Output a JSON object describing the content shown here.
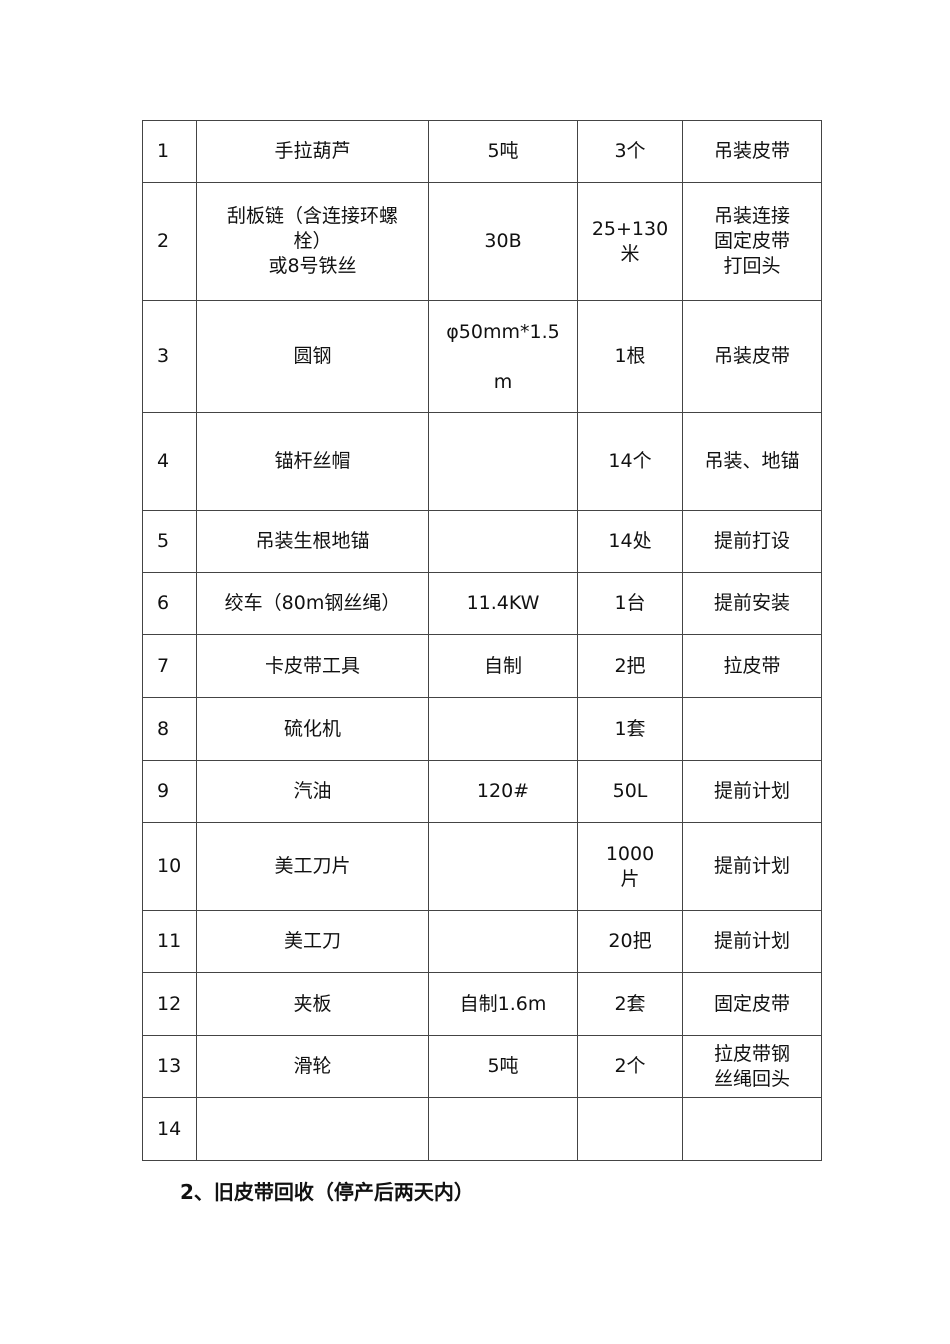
{
  "table": {
    "rows": [
      {
        "no": "1",
        "name": "手拉葫芦",
        "spec": "5吨",
        "qty": "3个",
        "use": "吊装皮带"
      },
      {
        "no": "2",
        "name": "刮板链（含连接环螺\n栓）\n或8号铁丝",
        "spec": "30B",
        "qty": "25+130\n米",
        "use": "吊装连接\n固定皮带\n打回头"
      },
      {
        "no": "3",
        "name": "圆钢",
        "spec": "φ50mm*1.5\nm",
        "qty": "1根",
        "use": "吊装皮带"
      },
      {
        "no": "4",
        "name": "锚杆丝帽",
        "spec": "",
        "qty": "14个",
        "use": "吊装、地锚"
      },
      {
        "no": "5",
        "name": "吊装生根地锚",
        "spec": "",
        "qty": "14处",
        "use": "提前打设"
      },
      {
        "no": "6",
        "name": "绞车（80m钢丝绳）",
        "spec": "11.4KW",
        "qty": "1台",
        "use": "提前安装"
      },
      {
        "no": "7",
        "name": "卡皮带工具",
        "spec": "自制",
        "qty": "2把",
        "use": "拉皮带"
      },
      {
        "no": "8",
        "name": "硫化机",
        "spec": "",
        "qty": "1套",
        "use": ""
      },
      {
        "no": "9",
        "name": "汽油",
        "spec": "120#",
        "qty": "50L",
        "use": "提前计划"
      },
      {
        "no": "10",
        "name": "美工刀片",
        "spec": "",
        "qty": "1000\n片",
        "use": "提前计划"
      },
      {
        "no": "11",
        "name": "美工刀",
        "spec": "",
        "qty": "20把",
        "use": "提前计划"
      },
      {
        "no": "12",
        "name": "夹板",
        "spec": "自制1.6m",
        "qty": "2套",
        "use": "固定皮带"
      },
      {
        "no": "13",
        "name": "滑轮",
        "spec": "5吨",
        "qty": "2个",
        "use": "拉皮带钢\n丝绳回头"
      },
      {
        "no": "14",
        "name": "",
        "spec": "",
        "qty": "",
        "use": ""
      }
    ]
  },
  "section_heading": "2、旧皮带回收（停产后两天内）"
}
